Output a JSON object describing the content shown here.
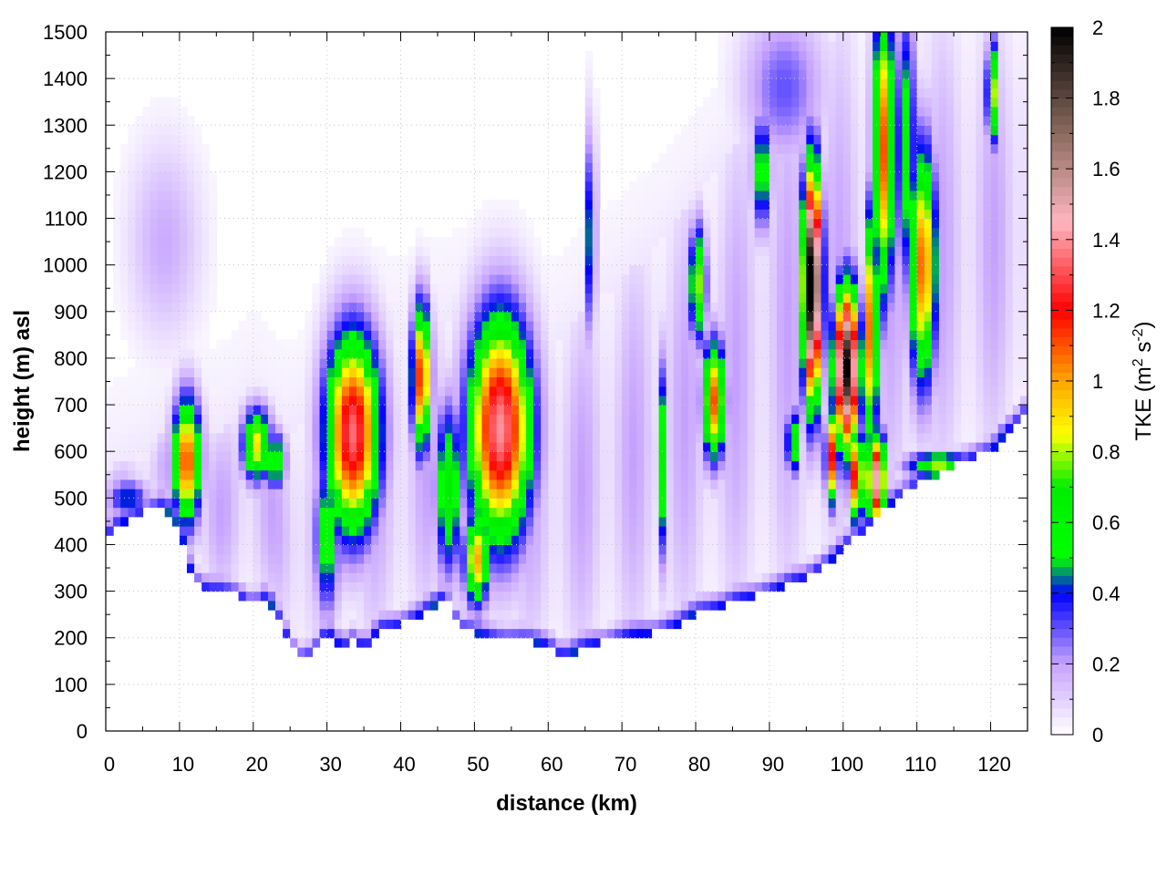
{
  "chart_data": {
    "type": "heatmap",
    "title": "",
    "xlabel": "distance (km)",
    "ylabel": "height (m) asl",
    "colorbar_label": "TKE (m² s⁻²)",
    "colorbar_label_parts": {
      "pre": "TKE (m",
      "sup1": "2",
      "mid": " s",
      "sup2": "-2",
      "post": ")"
    },
    "xlim": [
      0,
      125
    ],
    "ylim": [
      0,
      1500
    ],
    "zlim": [
      0,
      2
    ],
    "grid": true,
    "x_ticks": [
      "0",
      "10",
      "20",
      "30",
      "40",
      "50",
      "60",
      "70",
      "80",
      "90",
      "100",
      "110",
      "120"
    ],
    "y_ticks": [
      "0",
      "100",
      "200",
      "300",
      "400",
      "500",
      "600",
      "700",
      "800",
      "900",
      "1000",
      "1100",
      "1200",
      "1300",
      "1400",
      "1500"
    ],
    "colorbar_ticks": [
      "0",
      "0.2",
      "0.4",
      "0.6",
      "0.8",
      "1",
      "1.2",
      "1.4",
      "1.6",
      "1.8",
      "2"
    ],
    "colormap": [
      {
        "value": 0.0,
        "color": "#ffffff"
      },
      {
        "value": 0.2,
        "color": "#c6a2ff"
      },
      {
        "value": 0.4,
        "color": "#0000ff"
      },
      {
        "value": 0.5,
        "color": "#00ff00"
      },
      {
        "value": 0.7,
        "color": "#00ee00"
      },
      {
        "value": 0.85,
        "color": "#ffff00"
      },
      {
        "value": 1.0,
        "color": "#ffa500"
      },
      {
        "value": 1.2,
        "color": "#ff0000"
      },
      {
        "value": 1.45,
        "color": "#ffb6c1"
      },
      {
        "value": 1.7,
        "color": "#8b6b5e"
      },
      {
        "value": 2.0,
        "color": "#000000"
      }
    ],
    "terrain_height": {
      "x": [
        0,
        2,
        5,
        8,
        10,
        12,
        14,
        16,
        18,
        20,
        22,
        24,
        26,
        28,
        30,
        32,
        34,
        35,
        37,
        40,
        43,
        46,
        48,
        52,
        56,
        60,
        62,
        66,
        70,
        74,
        78,
        80,
        82,
        84,
        88,
        92,
        95,
        98,
        102,
        106,
        110,
        115,
        118,
        120,
        122,
        124,
        125
      ],
      "y": [
        410,
        440,
        470,
        480,
        440,
        320,
        300,
        295,
        290,
        270,
        285,
        220,
        155,
        160,
        210,
        180,
        200,
        170,
        215,
        230,
        250,
        290,
        220,
        200,
        195,
        185,
        160,
        185,
        200,
        210,
        230,
        255,
        265,
        270,
        290,
        310,
        330,
        360,
        420,
        480,
        530,
        570,
        590,
        595,
        640,
        670,
        690
      ]
    },
    "boundary_layer_top": {
      "x": [
        0,
        5,
        10,
        15,
        20,
        25,
        30,
        35,
        40,
        45,
        50,
        55,
        60,
        65,
        70,
        75,
        80,
        85,
        90,
        95,
        100,
        105,
        110,
        115,
        120,
        125
      ],
      "y": [
        560,
        600,
        700,
        640,
        720,
        640,
        740,
        860,
        840,
        880,
        900,
        850,
        820,
        900,
        970,
        1050,
        1150,
        1250,
        1400,
        1450,
        1500,
        1500,
        1500,
        1500,
        1500,
        1500
      ]
    },
    "background_tke": 0.12,
    "cells": [
      {
        "x": 11,
        "y": 580,
        "sx": 1.3,
        "sy": 95,
        "tke": 1.15
      },
      {
        "x": 20.5,
        "y": 615,
        "sx": 1.4,
        "sy": 55,
        "tke": 0.9
      },
      {
        "x": 23,
        "y": 580,
        "sx": 1.0,
        "sy": 45,
        "tke": 0.65
      },
      {
        "x": 33.5,
        "y": 640,
        "sx": 2.6,
        "sy": 150,
        "tke": 1.35
      },
      {
        "x": 30,
        "y": 420,
        "sx": 1.2,
        "sy": 120,
        "tke": 0.6
      },
      {
        "x": 42.8,
        "y": 760,
        "sx": 0.9,
        "sy": 110,
        "tke": 1.2
      },
      {
        "x": 46.5,
        "y": 520,
        "sx": 1.3,
        "sy": 130,
        "tke": 0.7
      },
      {
        "x": 53.5,
        "y": 650,
        "sx": 3.0,
        "sy": 170,
        "tke": 1.4
      },
      {
        "x": 50.3,
        "y": 370,
        "sx": 1.2,
        "sy": 70,
        "tke": 1.0
      },
      {
        "x": 65.8,
        "y": 1060,
        "sx": 0.45,
        "sy": 160,
        "tke": 0.55
      },
      {
        "x": 75.5,
        "y": 580,
        "sx": 0.5,
        "sy": 150,
        "tke": 0.65
      },
      {
        "x": 80.3,
        "y": 960,
        "sx": 0.8,
        "sy": 90,
        "tke": 0.8
      },
      {
        "x": 82.5,
        "y": 710,
        "sx": 1.1,
        "sy": 90,
        "tke": 1.1
      },
      {
        "x": 89,
        "y": 1200,
        "sx": 0.9,
        "sy": 90,
        "tke": 0.6
      },
      {
        "x": 93.2,
        "y": 620,
        "sx": 0.6,
        "sy": 50,
        "tke": 0.75
      },
      {
        "x": 95.8,
        "y": 960,
        "sx": 0.9,
        "sy": 170,
        "tke": 2.2
      },
      {
        "x": 100.5,
        "y": 780,
        "sx": 1.2,
        "sy": 120,
        "tke": 2.0
      },
      {
        "x": 98.5,
        "y": 590,
        "sx": 0.6,
        "sy": 70,
        "tke": 1.2
      },
      {
        "x": 101.8,
        "y": 550,
        "sx": 0.7,
        "sy": 70,
        "tke": 1.3
      },
      {
        "x": 104.5,
        "y": 540,
        "sx": 0.9,
        "sy": 70,
        "tke": 1.5
      },
      {
        "x": 103.8,
        "y": 860,
        "sx": 0.6,
        "sy": 180,
        "tke": 1.2
      },
      {
        "x": 105.5,
        "y": 1250,
        "sx": 1.0,
        "sy": 230,
        "tke": 1.1
      },
      {
        "x": 110.8,
        "y": 1000,
        "sx": 1.3,
        "sy": 180,
        "tke": 1.1
      },
      {
        "x": 108.5,
        "y": 1250,
        "sx": 1.0,
        "sy": 220,
        "tke": 0.6
      },
      {
        "x": 120.3,
        "y": 1370,
        "sx": 0.6,
        "sy": 80,
        "tke": 0.85
      },
      {
        "x": 3,
        "y": 500,
        "sx": 2.0,
        "sy": 30,
        "tke": 0.45
      },
      {
        "x": 113,
        "y": 570,
        "sx": 3.0,
        "sy": 20,
        "tke": 0.8
      },
      {
        "x": 8,
        "y": 1050,
        "sx": 3.5,
        "sy": 150,
        "tke": 0.18
      },
      {
        "x": 92,
        "y": 1380,
        "sx": 4.0,
        "sy": 120,
        "tke": 0.3
      }
    ]
  }
}
